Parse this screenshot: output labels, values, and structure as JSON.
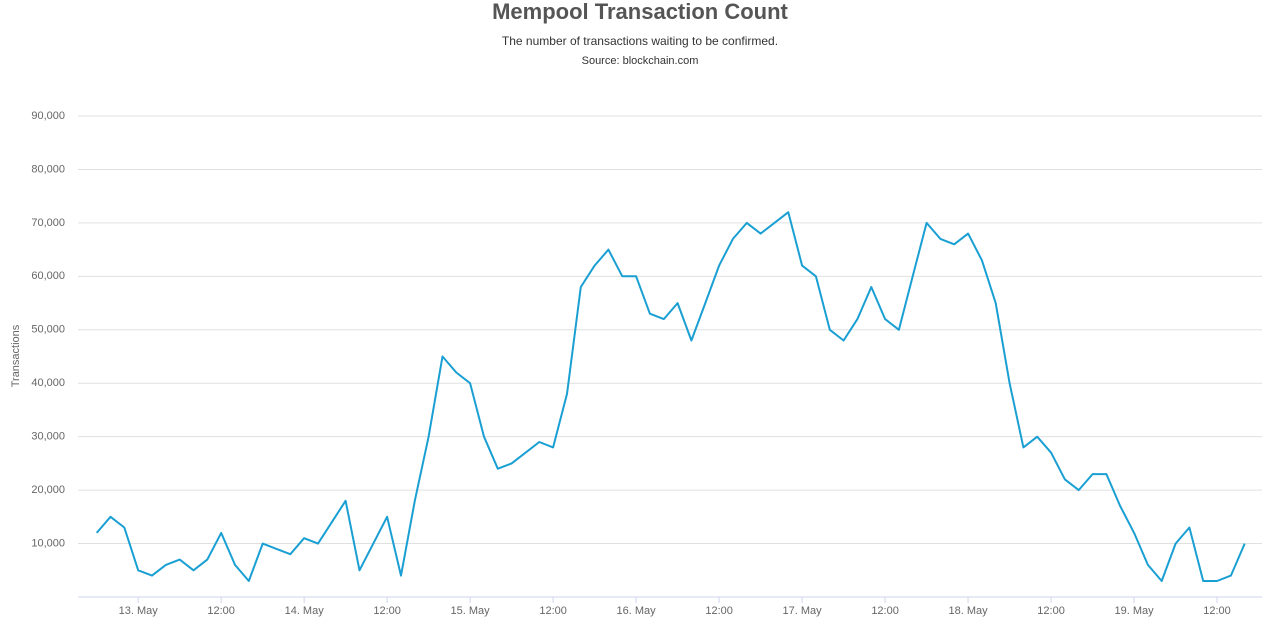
{
  "chart_data": {
    "type": "line",
    "title": "Mempool Transaction Count",
    "subtitle": "The number of transactions waiting to be confirmed.",
    "source": "Source: blockchain.com",
    "ylabel": "Transactions",
    "x": [
      "12. May 18:00",
      "12. May 20:00",
      "12. May 22:00",
      "13. May 00:00",
      "13. May 02:00",
      "13. May 04:00",
      "13. May 06:00",
      "13. May 08:00",
      "13. May 10:00",
      "13. May 12:00",
      "13. May 14:00",
      "13. May 16:00",
      "13. May 18:00",
      "13. May 20:00",
      "13. May 22:00",
      "14. May 00:00",
      "14. May 02:00",
      "14. May 04:00",
      "14. May 06:00",
      "14. May 08:00",
      "14. May 10:00",
      "14. May 12:00",
      "14. May 14:00",
      "14. May 16:00",
      "14. May 18:00",
      "14. May 20:00",
      "14. May 22:00",
      "15. May 00:00",
      "15. May 02:00",
      "15. May 04:00",
      "15. May 06:00",
      "15. May 08:00",
      "15. May 10:00",
      "15. May 12:00",
      "15. May 14:00",
      "15. May 16:00",
      "15. May 18:00",
      "15. May 20:00",
      "15. May 22:00",
      "16. May 00:00",
      "16. May 02:00",
      "16. May 04:00",
      "16. May 06:00",
      "16. May 08:00",
      "16. May 10:00",
      "16. May 12:00",
      "16. May 14:00",
      "16. May 16:00",
      "16. May 18:00",
      "16. May 20:00",
      "16. May 22:00",
      "17. May 00:00",
      "17. May 02:00",
      "17. May 04:00",
      "17. May 06:00",
      "17. May 08:00",
      "17. May 10:00",
      "17. May 12:00",
      "17. May 14:00",
      "17. May 16:00",
      "17. May 18:00",
      "17. May 20:00",
      "17. May 22:00",
      "18. May 00:00",
      "18. May 02:00",
      "18. May 04:00",
      "18. May 06:00",
      "18. May 08:00",
      "18. May 10:00",
      "18. May 12:00",
      "18. May 14:00",
      "18. May 16:00",
      "18. May 18:00",
      "18. May 20:00",
      "18. May 22:00",
      "19. May 00:00",
      "19. May 02:00",
      "19. May 04:00",
      "19. May 06:00",
      "19. May 08:00",
      "19. May 10:00",
      "19. May 12:00",
      "19. May 14:00",
      "19. May 16:00"
    ],
    "series": [
      {
        "name": "Transactions",
        "color": "#1a9fd3",
        "values": [
          12000,
          15000,
          13000,
          5000,
          4000,
          6000,
          7000,
          5000,
          7000,
          12000,
          6000,
          3000,
          10000,
          9000,
          8000,
          11000,
          10000,
          14000,
          18000,
          5000,
          10000,
          15000,
          4000,
          18000,
          30000,
          45000,
          42000,
          40000,
          30000,
          24000,
          25000,
          27000,
          29000,
          28000,
          38000,
          58000,
          62000,
          65000,
          60000,
          60000,
          53000,
          52000,
          55000,
          48000,
          55000,
          62000,
          67000,
          70000,
          68000,
          70000,
          72000,
          62000,
          60000,
          50000,
          48000,
          52000,
          58000,
          52000,
          50000,
          60000,
          70000,
          67000,
          66000,
          68000,
          63000,
          55000,
          40000,
          28000,
          30000,
          27000,
          22000,
          20000,
          23000,
          23000,
          17000,
          12000,
          6000,
          3000,
          10000,
          13000,
          3000,
          3000,
          4000,
          10000
        ]
      }
    ],
    "xlim": [
      "12. May 15:18",
      "19. May 18:30"
    ],
    "xticks": [
      {
        "value": "13. May 00:00",
        "label": "13. May"
      },
      {
        "value": "13. May 12:00",
        "label": "12:00"
      },
      {
        "value": "14. May 00:00",
        "label": "14. May"
      },
      {
        "value": "14. May 12:00",
        "label": "12:00"
      },
      {
        "value": "15. May 00:00",
        "label": "15. May"
      },
      {
        "value": "15. May 12:00",
        "label": "12:00"
      },
      {
        "value": "16. May 00:00",
        "label": "16. May"
      },
      {
        "value": "16. May 12:00",
        "label": "12:00"
      },
      {
        "value": "17. May 00:00",
        "label": "17. May"
      },
      {
        "value": "17. May 12:00",
        "label": "12:00"
      },
      {
        "value": "18. May 00:00",
        "label": "18. May"
      },
      {
        "value": "18. May 12:00",
        "label": "12:00"
      },
      {
        "value": "19. May 00:00",
        "label": "19. May"
      },
      {
        "value": "19. May 12:00",
        "label": "12:00"
      }
    ],
    "ylim": [
      0,
      90000
    ],
    "yticks": [
      {
        "value": 10000,
        "label": "10,000"
      },
      {
        "value": 20000,
        "label": "20,000"
      },
      {
        "value": 30000,
        "label": "30,000"
      },
      {
        "value": 40000,
        "label": "40,000"
      },
      {
        "value": 50000,
        "label": "50,000"
      },
      {
        "value": 60000,
        "label": "60,000"
      },
      {
        "value": 70000,
        "label": "70,000"
      },
      {
        "value": 80000,
        "label": "80,000"
      },
      {
        "value": 90000,
        "label": "90,000"
      }
    ],
    "grid": true
  }
}
